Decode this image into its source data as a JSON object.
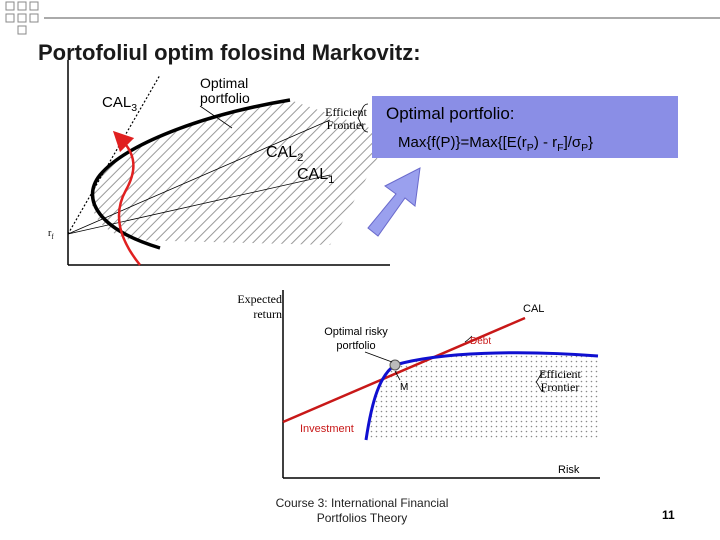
{
  "title": "Portofoliul optim folosind Markovitz:",
  "top_diagram": {
    "cal3": {
      "main": "CAL",
      "sub": "3"
    },
    "cal2": {
      "main": "CAL",
      "sub": "2"
    },
    "cal1": {
      "main": "CAL",
      "sub": "1"
    },
    "optimal_portfolio_label": "Optimal portfolio",
    "efficient_frontier_label": "Efficient Frontier",
    "rf_label": {
      "main": "r",
      "sub": "f"
    }
  },
  "callout": {
    "heading": "Optimal portfolio:",
    "formula_parts": {
      "a": "Max{f(P)}=Max{[E(r",
      "sub_p1": "P",
      "b": ") - r",
      "sub_f": "F",
      "c": "]/σ",
      "sub_p2": "P",
      "d": "}"
    }
  },
  "bottom_diagram": {
    "y_axis_label": "Expected return",
    "x_axis_label": "Risk",
    "cal_label": "CAL",
    "optimal_risky_label": "Optimal risky portfolio",
    "debt_label": "Debt",
    "m_label": "M",
    "efficient_frontier_label": "Efficient Frontier",
    "investment_label": "Investment"
  },
  "footer": {
    "course": "Course 3: International Financial Portfolios Theory",
    "page_number": "11"
  },
  "colors": {
    "red": "#e02020",
    "blue": "#1010d0",
    "callout_bg": "#8a8ee6",
    "arrow_fill": "#9aa0ee"
  }
}
